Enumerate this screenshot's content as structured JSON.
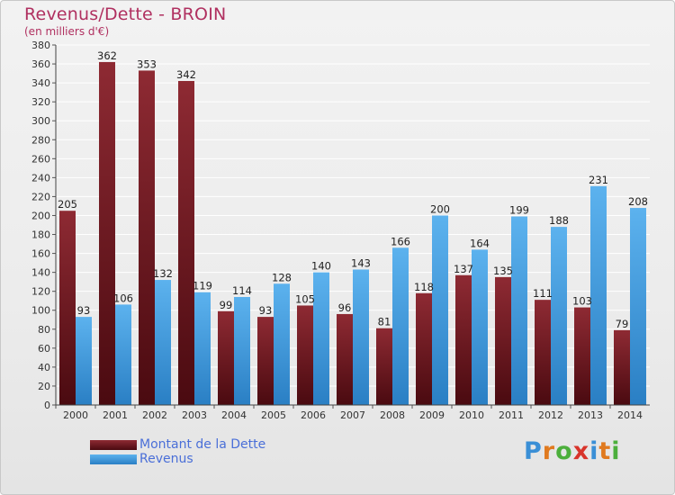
{
  "title": "Revenus/Dette - BROIN",
  "subtitle": "(en milliers d'€)",
  "logo": "Proxiti",
  "colors": {
    "series_debt": "#8b1e2a",
    "series_revenue": "#3d9be0",
    "title": "#b03060"
  },
  "chart_data": {
    "type": "bar",
    "title": "Revenus/Dette - BROIN",
    "subtitle": "(en milliers d'€)",
    "categories": [
      "2000",
      "2001",
      "2002",
      "2003",
      "2004",
      "2005",
      "2006",
      "2007",
      "2008",
      "2009",
      "2010",
      "2011",
      "2012",
      "2013",
      "2014"
    ],
    "series": [
      {
        "name": "Montant de la Dette",
        "values": [
          205,
          362,
          353,
          342,
          99,
          93,
          105,
          96,
          81,
          118,
          137,
          135,
          111,
          103,
          79
        ]
      },
      {
        "name": "Revenus",
        "values": [
          93,
          106,
          132,
          119,
          114,
          128,
          140,
          143,
          166,
          200,
          164,
          199,
          188,
          231,
          208
        ]
      }
    ],
    "ylim": [
      0,
      380
    ],
    "ytick_step": 20,
    "grid": true,
    "legend_position": "bottom-left"
  }
}
